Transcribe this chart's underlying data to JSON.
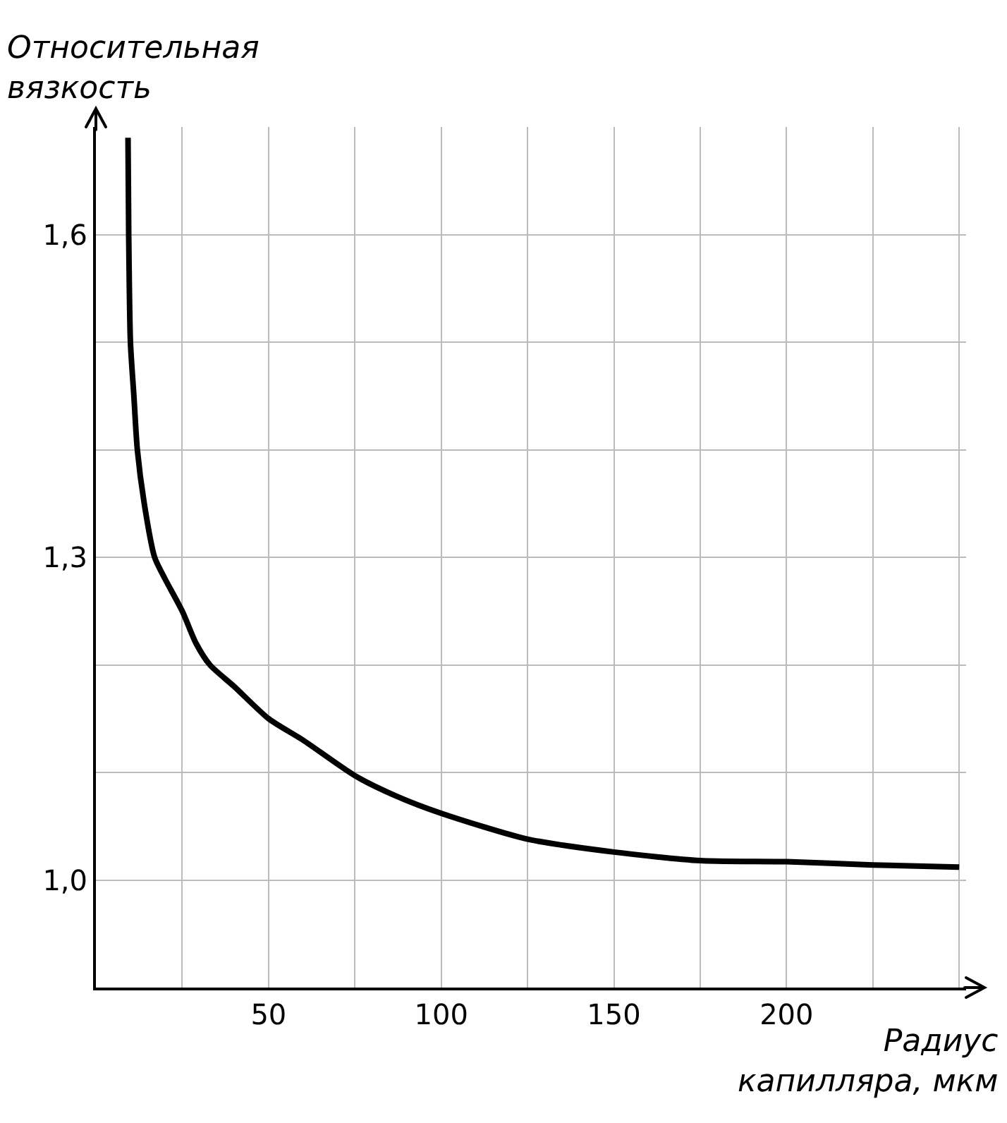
{
  "chart_data": {
    "type": "line",
    "xlabel": "Радиус капилляра, мкм",
    "ylabel": "Относительная вязкость",
    "x": [
      9.3,
      9.5,
      10,
      11,
      12,
      14,
      17,
      20,
      25,
      29,
      33,
      40,
      50,
      60,
      75,
      87,
      100,
      125,
      150,
      175,
      200,
      225,
      250
    ],
    "series": [
      {
        "color": "#000000",
        "values": [
          1.69,
          1.6,
          1.5,
          1.45,
          1.4,
          1.35,
          1.3,
          1.28,
          1.25,
          1.22,
          1.2,
          1.18,
          1.15,
          1.13,
          1.097,
          1.078,
          1.062,
          1.038,
          1.026,
          1.018,
          1.017,
          1.014,
          1.012
        ]
      }
    ],
    "xlim": [
      0,
      252
    ],
    "ylim": [
      0.9,
      1.7
    ],
    "xticks": [
      {
        "value": 25,
        "label": null
      },
      50,
      {
        "value": 75,
        "label": null
      },
      100,
      {
        "value": 125,
        "label": null
      },
      150,
      {
        "value": 175,
        "label": null
      },
      200,
      {
        "value": 225,
        "label": null
      },
      {
        "value": 250,
        "label": null
      }
    ],
    "yticks": [
      {
        "value": 1.0,
        "label": "1,0"
      },
      {
        "value": 1.1,
        "label": null
      },
      {
        "value": 1.2,
        "label": null
      },
      {
        "value": 1.3,
        "label": "1,3"
      },
      {
        "value": 1.4,
        "label": null
      },
      {
        "value": 1.5,
        "label": null
      },
      {
        "value": 1.6,
        "label": "1,6"
      }
    ],
    "grid": true,
    "marker": "none",
    "line_style": "solid"
  }
}
